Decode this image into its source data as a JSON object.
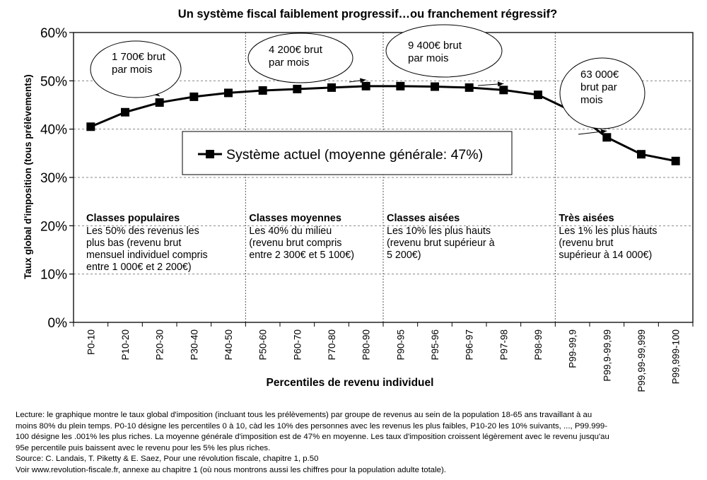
{
  "chart_data": {
    "type": "line",
    "title": "Un système fiscal faiblement progressif…ou franchement régressif?",
    "xlabel": "Percentiles de revenu individuel",
    "ylabel": "Taux global d'imposition (tous prélèvements)",
    "ylim": [
      0,
      60
    ],
    "yticks": [
      "0%",
      "10%",
      "20%",
      "30%",
      "40%",
      "50%",
      "60%"
    ],
    "grid": "horizontal dashed",
    "categories": [
      "P0-10",
      "P10-20",
      "P20-30",
      "P30-40",
      "P40-50",
      "P50-60",
      "P60-70",
      "P70-80",
      "P80-90",
      "P90-95",
      "P95-96",
      "P96-97",
      "P97-98",
      "P98-99",
      "P99-99,9",
      "P99,9-99,99",
      "P99,99-99,999",
      "P99,999-100"
    ],
    "series": [
      {
        "name": "Système actuel (moyenne générale: 47%)",
        "values": [
          40.5,
          43.5,
          45.5,
          46.7,
          47.5,
          48.0,
          48.3,
          48.6,
          48.9,
          48.9,
          48.8,
          48.6,
          48.1,
          47.1,
          43.7,
          38.3,
          34.8,
          33.4
        ],
        "color": "#000000"
      }
    ],
    "legend_position": "center",
    "annotations": [
      {
        "lines": [
          "1 700€ brut",
          "par mois"
        ],
        "target": "P20-30"
      },
      {
        "lines": [
          "4 200€ brut",
          "par mois"
        ],
        "target": "P80-90"
      },
      {
        "lines": [
          "9 400€ brut",
          "par mois"
        ],
        "target": "P97-98"
      },
      {
        "lines": [
          "63 000€",
          "brut par",
          "mois"
        ],
        "target": "P99,9-99,99"
      }
    ],
    "classes": [
      {
        "title": "Classes populaires",
        "lines": [
          "Les 50% des revenus les",
          "plus bas (revenu brut",
          "mensuel individuel compris",
          "entre 1 000€ et 2 200€)"
        ]
      },
      {
        "title": "Classes moyennes",
        "lines": [
          "Les 40% du milieu",
          "(revenu brut compris",
          "entre 2 300€ et 5 100€)"
        ]
      },
      {
        "title": "Classes aisées",
        "lines": [
          "Les 10% les plus hauts",
          "(revenu brut supérieur à",
          "5 200€)"
        ]
      },
      {
        "title": "Très aisées",
        "lines": [
          "Les 1% les plus hauts",
          "(revenu brut",
          "supérieur à 14 000€)"
        ]
      }
    ]
  },
  "caption": {
    "lines": [
      "Lecture: le graphique montre le taux global d'imposition (incluant tous les prélèvements) par groupe de revenus au sein de la population 18-65 ans travaillant à au",
      "moins 80% du plein temps. P0-10 désigne les percentiles 0 à 10, càd les 10% des personnes avec les revenus les plus faibles, P10-20 les 10% suivants, ..., P99.999-",
      "100 désigne les .001% les plus riches. La moyenne générale d'imposition est de 47% en moyenne. Les taux d'imposition croissent légèrement avec le revenu jusqu'au",
      "95e percentile puis baissent avec le revenu pour les 5% les plus riches.",
      "Source: C. Landais, T. Piketty & E. Saez, Pour une révolution fiscale, chapitre 1, p.50",
      "Voir www.revolution-fiscale.fr, annexe au chapitre 1 (où nous montrons aussi les chiffres pour la population adulte totale)."
    ]
  }
}
